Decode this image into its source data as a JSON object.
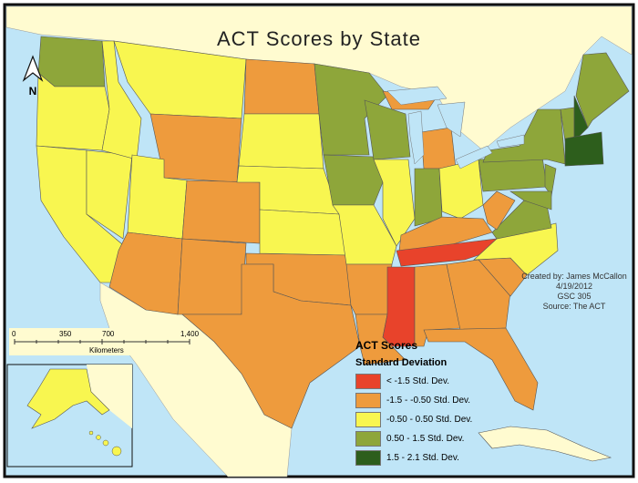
{
  "title": "ACT Scores by State",
  "north_label": "N",
  "credits": [
    "Created by: James McCallon",
    "4/19/2012",
    "GSC 305",
    "Source: The ACT"
  ],
  "scale_bar": {
    "ticks": [
      "0",
      "350",
      "700",
      "1,400"
    ],
    "unit": "Kilometers"
  },
  "legend": {
    "title": "ACT Scores",
    "subtitle": "Standard Deviation",
    "classes": [
      {
        "label": "< -1.5 Std. Dev.",
        "color": "#e8432b"
      },
      {
        "label": "-1.5 - -0.50 Std. Dev.",
        "color": "#ee9b3d"
      },
      {
        "label": "-0.50 - 0.50 Std. Dev.",
        "color": "#f8f650"
      },
      {
        "label": "0.50 - 1.5 Std. Dev.",
        "color": "#8ea63a"
      },
      {
        "label": "1.5 - 2.1 Std. Dev.",
        "color": "#2d5e1c"
      }
    ]
  },
  "colors": {
    "water": "#bfe5f7",
    "land": "#fffbd0",
    "border": "#111111"
  }
}
